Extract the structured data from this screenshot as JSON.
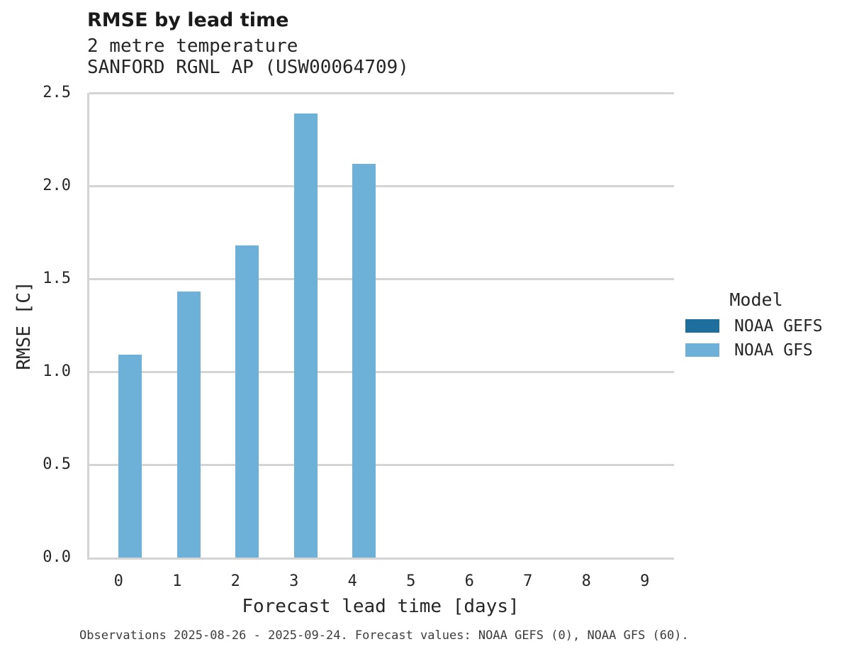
{
  "header": {
    "title": "RMSE by lead time",
    "subtitle_line1": "2 metre temperature",
    "subtitle_line2": "SANFORD RGNL AP (USW00064709)"
  },
  "footer": {
    "text": "Observations 2025-08-26 - 2025-09-24. Forecast values: NOAA GEFS (0), NOAA GFS (60)."
  },
  "legend": {
    "title": "Model",
    "items": [
      {
        "label": "NOAA GEFS",
        "color": "#1f6f9e"
      },
      {
        "label": "NOAA GFS",
        "color": "#6db1d8"
      }
    ]
  },
  "chart_data": {
    "type": "bar",
    "title": "RMSE by lead time",
    "subtitle": [
      "2 metre temperature",
      "SANFORD RGNL AP (USW00064709)"
    ],
    "xlabel": "Forecast lead time [days]",
    "ylabel": "RMSE [C]",
    "categories": [
      "0",
      "1",
      "2",
      "3",
      "4",
      "5",
      "6",
      "7",
      "8",
      "9"
    ],
    "series": [
      {
        "name": "NOAA GEFS",
        "color": "#1f6f9e",
        "values": [
          null,
          null,
          null,
          null,
          null,
          null,
          null,
          null,
          null,
          null
        ]
      },
      {
        "name": "NOAA GFS",
        "color": "#6db1d8",
        "values": [
          1.09,
          1.43,
          1.68,
          2.39,
          2.12,
          null,
          null,
          null,
          null,
          null
        ]
      }
    ],
    "ylim": [
      0,
      2.5
    ],
    "yticks": [
      "0.0",
      "0.5",
      "1.0",
      "1.5",
      "2.0",
      "2.5"
    ],
    "grid": true,
    "legend_position": "right",
    "colors": {
      "grid": "#d4d4d4",
      "text": "#262626",
      "caption_text": "#3d3d3d",
      "background": "#ffffff"
    }
  }
}
